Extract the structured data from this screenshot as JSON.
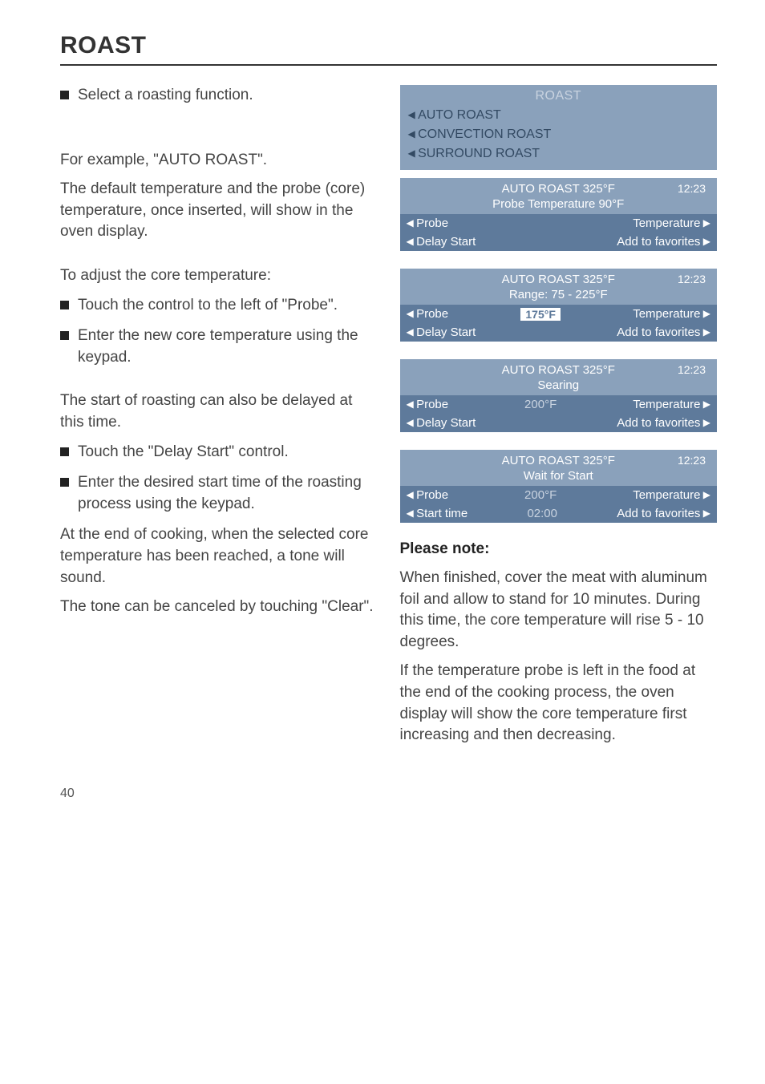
{
  "page": {
    "title": "ROAST",
    "number": "40"
  },
  "left": {
    "select_fn": "Select a roasting function.",
    "example": "For example, \"AUTO ROAST\".",
    "default_temp": "The default temperature and the probe (core) temperature, once inserted, will show in the oven display.",
    "adjust_core": "To adjust the core temperature:",
    "touch_probe": "Touch the control to the left of \"Probe\".",
    "enter_core": "Enter the new core temperature using the keypad.",
    "delay_intro": "The start of roasting can also be delayed at this time.",
    "touch_delay": "Touch the \"Delay Start\" control.",
    "enter_start": "Enter the desired start time of the roasting process using the keypad.",
    "end_cooking": "At the end of cooking, when the selected core temperature has been reached, a tone will sound.",
    "cancel_tone": "The tone can be canceled by touching \"Clear\"."
  },
  "panel_colors": {
    "dark_bg": "#5e7a9b",
    "light_bg": "#8aa1bb",
    "header_fg": "#c9d3e0",
    "dark_fg": "#334a63",
    "light_fg": "#ffffff",
    "muted_fg": "#c9d3e0"
  },
  "panel_menu": {
    "title": "ROAST",
    "items": [
      "AUTO ROAST",
      "CONVECTION ROAST",
      "SURROUND ROAST"
    ]
  },
  "panels": [
    {
      "mode": "AUTO ROAST 325°F",
      "clock": "12:23",
      "sub": "Probe Temperature 90°F",
      "rows": [
        {
          "left": "Probe",
          "mid": null,
          "mid_chip": false,
          "right": "Temperature",
          "bg": "dark"
        },
        {
          "left": "Delay Start",
          "mid": null,
          "mid_chip": false,
          "right": "Add to favorites",
          "bg": "dark"
        }
      ]
    },
    {
      "mode": "AUTO ROAST 325°F",
      "clock": "12:23",
      "sub": "Range: 75 - 225°F",
      "rows": [
        {
          "left": "Probe",
          "mid": "175°F",
          "mid_chip": true,
          "right": "Temperature",
          "bg": "dark"
        },
        {
          "left": "Delay Start",
          "mid": null,
          "mid_chip": false,
          "right": "Add to favorites",
          "bg": "dark"
        }
      ]
    },
    {
      "mode": "AUTO ROAST 325°F",
      "clock": "12:23",
      "sub": "Searing",
      "rows": [
        {
          "left": "Probe",
          "mid": "200°F",
          "mid_chip": false,
          "right": "Temperature",
          "bg": "dark"
        },
        {
          "left": "Delay Start",
          "mid": null,
          "mid_chip": false,
          "right": "Add to favorites",
          "bg": "dark"
        }
      ]
    },
    {
      "mode": "AUTO ROAST 325°F",
      "clock": "12:23",
      "sub": "Wait for Start",
      "rows": [
        {
          "left": "Probe",
          "mid": "200°F",
          "mid_chip": false,
          "right": "Temperature",
          "bg": "dark"
        },
        {
          "left": "Start time",
          "mid": "02:00",
          "mid_chip": false,
          "right": "Add to favorites",
          "bg": "dark"
        }
      ]
    }
  ],
  "note": {
    "head": "Please note:",
    "p1": "When finished, cover the meat with aluminum foil and allow to stand for 10 minutes. During this time, the core temperature will rise 5 - 10 degrees.",
    "p2": "If the temperature probe is left in the food at the end of the cooking process, the oven display will show the core temperature first increasing and then decreasing."
  }
}
